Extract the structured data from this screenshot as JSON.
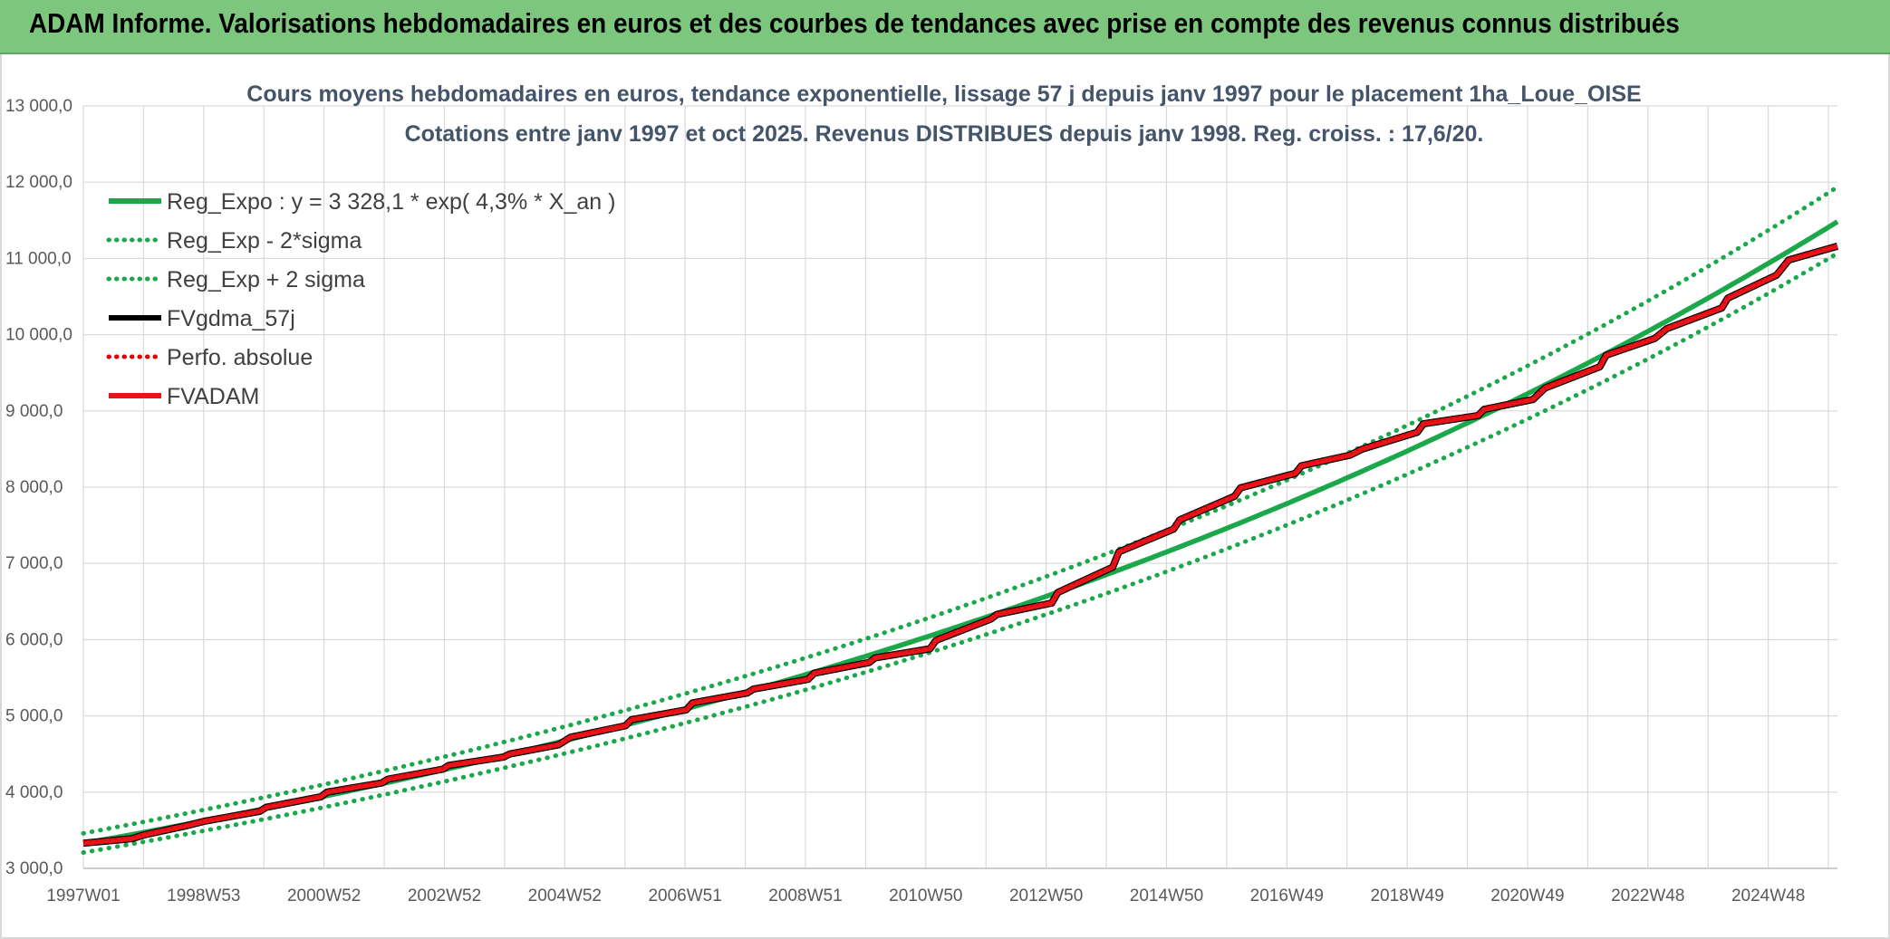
{
  "banner": {
    "title": "ADAM Informe. Valorisations hebdomadaires en euros et des courbes de tendances avec prise en compte des revenus connus distribués"
  },
  "chart_data": {
    "type": "line",
    "title": "Cours moyens hebdomadaires en euros, tendance exponentielle, lissage 57 j depuis janv 1997 pour le placement 1ha_Loue_OISE",
    "subtitle": "Cotations entre janv 1997 et oct 2025. Revenus DISTRIBUES depuis janv 1998. Reg. croiss. : 17,6/20.",
    "xlabel": "",
    "ylabel": "",
    "x_ticks": [
      "1997W01",
      "1998W53",
      "2000W52",
      "2002W52",
      "2004W52",
      "2006W51",
      "2008W51",
      "2010W50",
      "2012W50",
      "2014W50",
      "2016W49",
      "2018W49",
      "2020W49",
      "2022W48",
      "2024W48"
    ],
    "y_ticks": [
      "3 000,0",
      "4 000,0",
      "5 000,0",
      "6 000,0",
      "7 000,0",
      "8 000,0",
      "9 000,0",
      "10 000,0",
      "11 000,0",
      "12 000,0",
      "13 000,0"
    ],
    "xlim": [
      1997.0,
      2025.8
    ],
    "ylim": [
      3000,
      13000
    ],
    "grid": true,
    "legend_position": "top-left",
    "series": [
      {
        "name": "Reg_Expo : y = 3 328,1 * exp( 4,3% *  X_an )",
        "style": "solid",
        "color": "#1aa84a",
        "equation": {
          "a": 3328.1,
          "rate": 0.043
        }
      },
      {
        "name": "Reg_Exp - 2*sigma",
        "style": "dotted",
        "color": "#1aa84a",
        "equation": {
          "a": 3208,
          "rate": 0.043
        }
      },
      {
        "name": "Reg_Exp + 2 sigma",
        "style": "dotted",
        "color": "#1aa84a",
        "equation": {
          "a": 3460,
          "rate": 0.043
        }
      },
      {
        "name": "FVgdma_57j",
        "style": "solid",
        "color": "#000000"
      },
      {
        "name": "Perfo. absolue",
        "style": "dotted",
        "color": "#e00000"
      },
      {
        "name": "FVADAM",
        "style": "solid",
        "color": "#e8141a"
      }
    ],
    "fvadam_points": {
      "x": [
        1997.0,
        1997.8,
        1998.0,
        1998.7,
        1999.0,
        1999.9,
        2000.0,
        2000.9,
        2001.0,
        2001.9,
        2002.0,
        2002.9,
        2003.0,
        2003.9,
        2004.0,
        2004.8,
        2005.0,
        2005.9,
        2006.0,
        2006.9,
        2007.0,
        2007.9,
        2008.0,
        2008.9,
        2009.0,
        2009.9,
        2010.0,
        2010.9,
        2011.0,
        2011.9,
        2012.0,
        2012.9,
        2013.0,
        2013.9,
        2014.0,
        2014.9,
        2015.0,
        2015.9,
        2016.0,
        2016.9,
        2017.0,
        2017.8,
        2018.0,
        2018.9,
        2019.0,
        2019.9,
        2020.0,
        2020.8,
        2021.0,
        2021.9,
        2022.0,
        2022.8,
        2023.0,
        2023.9,
        2024.0,
        2024.8,
        2025.0,
        2025.8
      ],
      "y": [
        3330,
        3390,
        3440,
        3560,
        3620,
        3750,
        3800,
        3940,
        4000,
        4120,
        4170,
        4300,
        4350,
        4460,
        4500,
        4620,
        4720,
        4870,
        4950,
        5080,
        5170,
        5300,
        5350,
        5480,
        5560,
        5700,
        5760,
        5880,
        5990,
        6270,
        6330,
        6480,
        6620,
        6950,
        7150,
        7450,
        7570,
        7880,
        7990,
        8180,
        8280,
        8420,
        8500,
        8720,
        8830,
        8940,
        9020,
        9150,
        9300,
        9580,
        9730,
        9950,
        10080,
        10350,
        10480,
        10780,
        10980,
        11160
      ]
    }
  }
}
